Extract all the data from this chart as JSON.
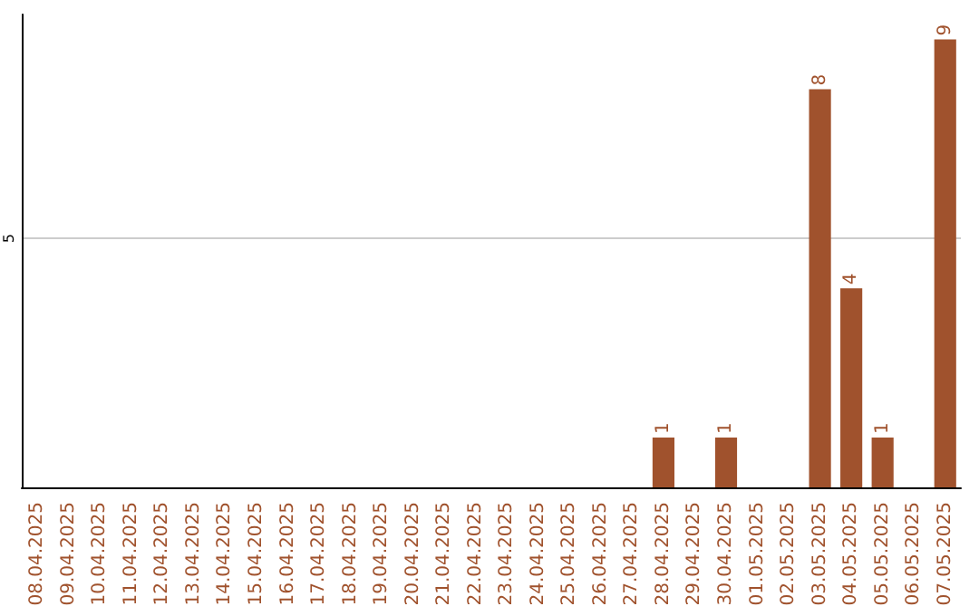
{
  "chart_data": {
    "type": "bar",
    "categories": [
      "08.04.2025",
      "09.04.2025",
      "10.04.2025",
      "11.04.2025",
      "12.04.2025",
      "13.04.2025",
      "14.04.2025",
      "15.04.2025",
      "16.04.2025",
      "17.04.2025",
      "18.04.2025",
      "19.04.2025",
      "20.04.2025",
      "21.04.2025",
      "22.04.2025",
      "23.04.2025",
      "24.04.2025",
      "25.04.2025",
      "26.04.2025",
      "27.04.2025",
      "28.04.2025",
      "29.04.2025",
      "30.04.2025",
      "01.05.2025",
      "02.05.2025",
      "03.05.2025",
      "04.05.2025",
      "05.05.2025",
      "06.05.2025",
      "07.05.2025"
    ],
    "values": [
      null,
      null,
      null,
      null,
      null,
      null,
      null,
      null,
      null,
      null,
      null,
      null,
      null,
      null,
      null,
      null,
      null,
      null,
      null,
      null,
      1,
      null,
      1,
      null,
      null,
      8,
      4,
      1,
      null,
      9
    ],
    "color": "#a0522d",
    "ylim": [
      0,
      9.5
    ],
    "yticks": [
      5
    ],
    "grid": "y",
    "data_labels": true
  }
}
